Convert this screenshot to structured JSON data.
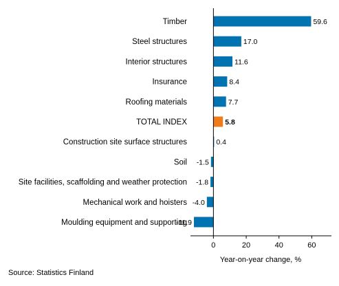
{
  "chart_data": {
    "type": "bar",
    "orientation": "horizontal",
    "categories": [
      "Timber",
      "Steel structures",
      "Interior structures",
      "Insurance",
      "Roofing materials",
      "TOTAL INDEX",
      "Construction site surface structures",
      "Soil",
      "Site facilities, scaffolding and weather protection",
      "Mechanical work and hoisters",
      "Moulding equipment and supporting"
    ],
    "values": [
      59.6,
      17.0,
      11.6,
      8.4,
      7.7,
      5.8,
      0.4,
      -1.5,
      -1.8,
      -4.0,
      -11.9
    ],
    "value_labels": [
      "59.6",
      "17.0",
      "11.6",
      "8.4",
      "7.7",
      "5.8",
      "0.4",
      "-1.5",
      "-1.8",
      "-4.0",
      "-11.9"
    ],
    "highlight_category": "TOTAL INDEX",
    "xlabel": "Year-on-year change, %",
    "xticks": [
      0,
      20,
      40,
      60
    ],
    "xtick_labels": [
      "0",
      "20",
      "40",
      "60"
    ],
    "xlim": [
      -14,
      72
    ],
    "grid": false,
    "colors": {
      "bar": "#0073b0",
      "highlight": "#f07b1a",
      "axis": "#000000"
    }
  },
  "source": "Source: Statistics Finland"
}
